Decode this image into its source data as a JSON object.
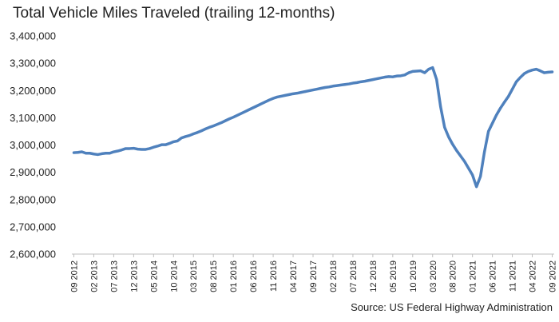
{
  "title": "Total Vehicle Miles Traveled (trailing 12-months)",
  "source": "Source: US Federal Highway Administration",
  "colors": {
    "line": "#4f81bd",
    "axis": "#bfbfbf",
    "text": "#222222"
  },
  "chart_data": {
    "type": "line",
    "title": "Total Vehicle Miles Traveled (trailing 12-months)",
    "xlabel": "",
    "ylabel": "",
    "ylim": [
      2600000,
      3400000
    ],
    "grid": false,
    "legend": "none",
    "y_ticks": [
      "2,600,000",
      "2,700,000",
      "2,800,000",
      "2,900,000",
      "3,000,000",
      "3,100,000",
      "3,200,000",
      "3,300,000",
      "3,400,000"
    ],
    "x_tick_labels": [
      "09 2012",
      "02 2013",
      "07 2013",
      "12 2013",
      "05 2014",
      "10 2014",
      "03 2015",
      "08 2015",
      "01 2016",
      "06 2016",
      "11 2016",
      "04 2017",
      "09 2017",
      "02 2018",
      "07 2018",
      "12 2018",
      "05 2019",
      "10 2019",
      "03 2020",
      "08 2020",
      "01 2021",
      "06 2021",
      "11 2021",
      "04 2022",
      "09 2022"
    ],
    "series": [
      {
        "x": [
          "09 2012",
          "10 2012",
          "11 2012",
          "12 2012",
          "01 2013",
          "02 2013",
          "03 2013",
          "04 2013",
          "05 2013",
          "06 2013",
          "07 2013",
          "08 2013",
          "09 2013",
          "10 2013",
          "11 2013",
          "12 2013",
          "01 2014",
          "02 2014",
          "03 2014",
          "04 2014",
          "05 2014",
          "06 2014",
          "07 2014",
          "08 2014",
          "09 2014",
          "10 2014",
          "11 2014",
          "12 2014",
          "01 2015",
          "02 2015",
          "03 2015",
          "04 2015",
          "05 2015",
          "06 2015",
          "07 2015",
          "08 2015",
          "09 2015",
          "10 2015",
          "11 2015",
          "12 2015",
          "01 2016",
          "02 2016",
          "03 2016",
          "04 2016",
          "05 2016",
          "06 2016",
          "07 2016",
          "08 2016",
          "09 2016",
          "10 2016",
          "11 2016",
          "12 2016",
          "01 2017",
          "02 2017",
          "03 2017",
          "04 2017",
          "05 2017",
          "06 2017",
          "07 2017",
          "08 2017",
          "09 2017",
          "10 2017",
          "11 2017",
          "12 2017",
          "01 2018",
          "02 2018",
          "03 2018",
          "04 2018",
          "05 2018",
          "06 2018",
          "07 2018",
          "08 2018",
          "09 2018",
          "10 2018",
          "11 2018",
          "12 2018",
          "01 2019",
          "02 2019",
          "03 2019",
          "04 2019",
          "05 2019",
          "06 2019",
          "07 2019",
          "08 2019",
          "09 2019",
          "10 2019",
          "11 2019",
          "12 2019",
          "01 2020",
          "02 2020",
          "03 2020",
          "04 2020",
          "05 2020",
          "06 2020",
          "07 2020",
          "08 2020",
          "09 2020",
          "10 2020",
          "11 2020",
          "12 2020",
          "01 2021",
          "02 2021",
          "03 2021",
          "04 2021",
          "05 2021",
          "06 2021",
          "07 2021",
          "08 2021",
          "09 2021",
          "10 2021",
          "11 2021",
          "12 2021",
          "01 2022",
          "02 2022",
          "03 2022",
          "04 2022",
          "05 2022",
          "06 2022",
          "07 2022",
          "08 2022",
          "09 2022"
        ],
        "values": [
          2972000,
          2973000,
          2975000,
          2970000,
          2970000,
          2967000,
          2965000,
          2968000,
          2970000,
          2970000,
          2975000,
          2978000,
          2982000,
          2987000,
          2987000,
          2988000,
          2985000,
          2984000,
          2984000,
          2987000,
          2992000,
          2996000,
          3001000,
          3001000,
          3006000,
          3012000,
          3015000,
          3026000,
          3031000,
          3035000,
          3041000,
          3046000,
          3052000,
          3059000,
          3065000,
          3070000,
          3076000,
          3082000,
          3089000,
          3096000,
          3102000,
          3109000,
          3116000,
          3123000,
          3130000,
          3137000,
          3144000,
          3151000,
          3158000,
          3165000,
          3171000,
          3176000,
          3179000,
          3182000,
          3185000,
          3188000,
          3190000,
          3193000,
          3196000,
          3199000,
          3202000,
          3205000,
          3208000,
          3211000,
          3213000,
          3216000,
          3218000,
          3220000,
          3222000,
          3224000,
          3227000,
          3229000,
          3232000,
          3234000,
          3237000,
          3240000,
          3243000,
          3246000,
          3249000,
          3251000,
          3250000,
          3253000,
          3254000,
          3257000,
          3265000,
          3270000,
          3271000,
          3272000,
          3265000,
          3278000,
          3284000,
          3240000,
          3140000,
          3065000,
          3030000,
          3003000,
          2980000,
          2960000,
          2940000,
          2915000,
          2890000,
          2847000,
          2885000,
          2975000,
          3050000,
          3080000,
          3110000,
          3135000,
          3157000,
          3178000,
          3205000,
          3232000,
          3248000,
          3262000,
          3270000,
          3275000,
          3278000,
          3272000,
          3265000,
          3267000,
          3268000
        ]
      }
    ]
  }
}
